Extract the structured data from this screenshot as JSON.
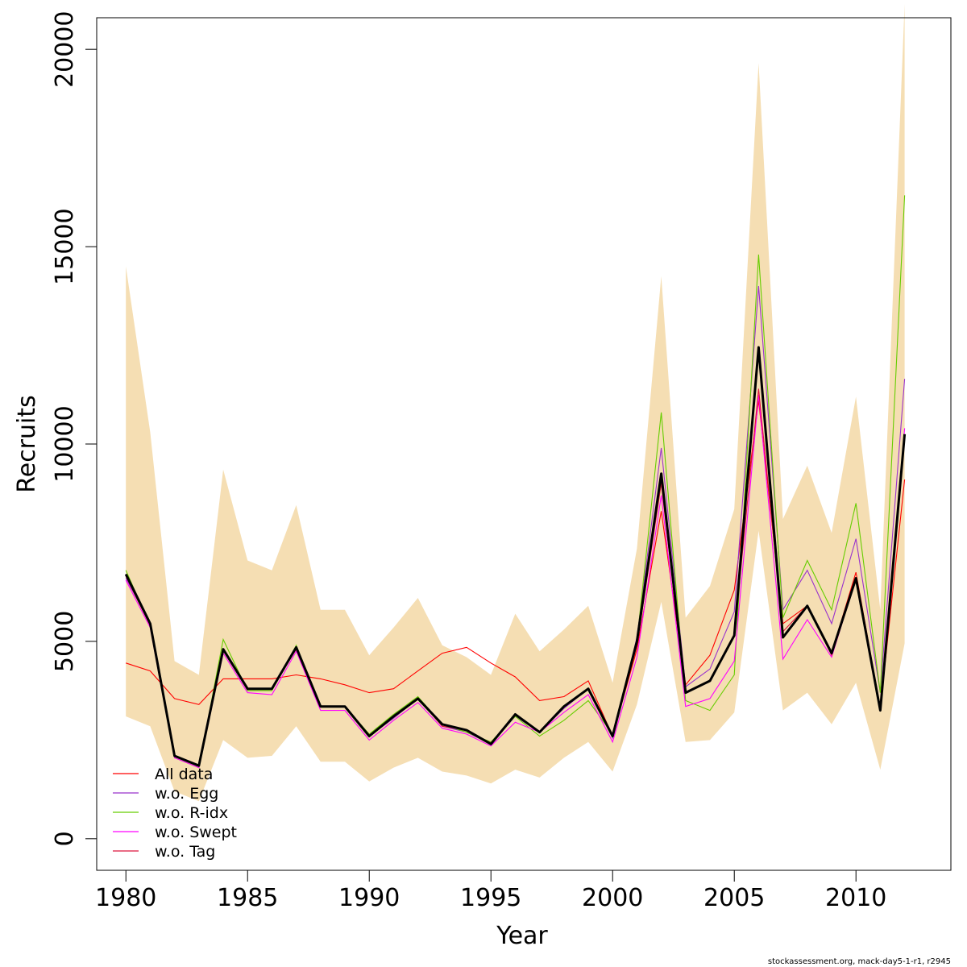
{
  "footer": "stockassessment.org, mack-day5-1-r1, r2945",
  "chart_data": {
    "type": "line",
    "xlabel": "Year",
    "ylabel": "Recruits",
    "xlim": [
      1978.8,
      2013.9
    ],
    "ylim": [
      -800,
      20800
    ],
    "xticks": [
      1980,
      1985,
      1990,
      1995,
      2000,
      2005,
      2010
    ],
    "yticks": [
      0,
      5000,
      10000,
      15000,
      20000
    ],
    "grid": false,
    "legend_position": "bottom-left",
    "band_color": "#f5deb3",
    "x": [
      1980,
      1981,
      1982,
      1983,
      1984,
      1985,
      1986,
      1987,
      1988,
      1989,
      1990,
      1991,
      1992,
      1993,
      1994,
      1995,
      1996,
      1997,
      1998,
      1999,
      2000,
      2001,
      2002,
      2003,
      2004,
      2005,
      2006,
      2007,
      2008,
      2009,
      2010,
      2011,
      2012
    ],
    "band": {
      "upper": [
        14500,
        10300,
        4500,
        4150,
        9350,
        7050,
        6800,
        8450,
        5800,
        5800,
        4650,
        5350,
        6100,
        4900,
        4600,
        4150,
        5700,
        4750,
        5300,
        5900,
        3950,
        7350,
        14250,
        5600,
        6400,
        8350,
        19650,
        8100,
        9450,
        7750,
        11200,
        5800,
        21150
      ],
      "lower": [
        3100,
        2850,
        1200,
        950,
        2500,
        2050,
        2100,
        2850,
        1950,
        1950,
        1450,
        1800,
        2050,
        1700,
        1600,
        1400,
        1750,
        1550,
        2050,
        2450,
        1700,
        3400,
        6000,
        2450,
        2500,
        3200,
        7800,
        3250,
        3700,
        2900,
        3950,
        1750,
        4950
      ]
    },
    "main": {
      "color": "#000000",
      "values": [
        6700,
        5450,
        2100,
        1850,
        4800,
        3800,
        3800,
        4850,
        3350,
        3350,
        2600,
        3100,
        3550,
        2900,
        2750,
        2400,
        3150,
        2700,
        3350,
        3800,
        2600,
        5000,
        9250,
        3700,
        4000,
        5150,
        12450,
        5100,
        5900,
        4700,
        6600,
        3250,
        10250
      ]
    },
    "series": [
      {
        "name": "All data",
        "color": "#ff0000",
        "values": [
          4450,
          4250,
          3550,
          3400,
          4050,
          4050,
          4050,
          4150,
          4050,
          3900,
          3700,
          3800,
          4250,
          4700,
          4850,
          4450,
          4100,
          3500,
          3600,
          4000,
          2600,
          4800,
          8300,
          3900,
          4650,
          6300,
          11100,
          5450,
          5900,
          4700,
          6750,
          3300,
          9100
        ]
      },
      {
        "name": "w.o. Egg",
        "color": "#9932cc",
        "values": [
          6600,
          5450,
          2100,
          1850,
          4800,
          3800,
          3800,
          4850,
          3350,
          3350,
          2600,
          3050,
          3550,
          2850,
          2700,
          2400,
          3100,
          2700,
          3300,
          3800,
          2550,
          5100,
          9900,
          3850,
          4300,
          5750,
          14000,
          5800,
          6800,
          5450,
          7600,
          3700,
          11650
        ]
      },
      {
        "name": "w.o. R-idx",
        "color": "#66cd00",
        "values": [
          6800,
          5400,
          2050,
          1800,
          5050,
          3750,
          3750,
          4900,
          3350,
          3350,
          2650,
          3150,
          3600,
          2900,
          2700,
          2450,
          3100,
          2600,
          3000,
          3500,
          2650,
          5000,
          10800,
          3500,
          3250,
          4150,
          14800,
          5600,
          7050,
          5800,
          8500,
          3700,
          16300
        ]
      },
      {
        "name": "w.o. Swept",
        "color": "#ff00ff",
        "values": [
          6550,
          5350,
          2050,
          1800,
          4700,
          3700,
          3650,
          4750,
          3250,
          3250,
          2500,
          3000,
          3450,
          2800,
          2650,
          2350,
          2950,
          2700,
          3200,
          3650,
          2450,
          4600,
          8700,
          3350,
          3550,
          4500,
          11250,
          4550,
          5550,
          4600,
          6600,
          3300,
          10400
        ]
      },
      {
        "name": "w.o. Tag",
        "color": "#dc143c",
        "values": [
          6650,
          5400,
          2100,
          1850,
          4800,
          3800,
          3800,
          4800,
          3350,
          3350,
          2600,
          3100,
          3550,
          2850,
          2750,
          2400,
          3150,
          2700,
          3350,
          3800,
          2600,
          4900,
          9000,
          3700,
          4000,
          5150,
          11400,
          5250,
          5900,
          4650,
          6550,
          3250,
          10200
        ]
      }
    ]
  }
}
